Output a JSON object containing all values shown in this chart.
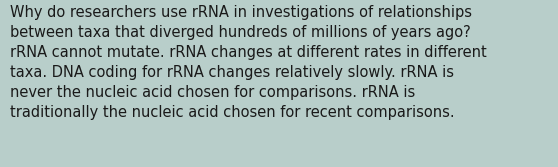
{
  "background_color": "#b8ceca",
  "text_color": "#1a1a1a",
  "font_size": 10.5,
  "text": "Why do researchers use rRNA in investigations of relationships\nbetween taxa that diverged hundreds of millions of years ago?\nrRNA cannot mutate. rRNA changes at different rates in different\ntaxa. DNA coding for rRNA changes relatively slowly. rRNA is\nnever the nucleic acid chosen for comparisons. rRNA is\ntraditionally the nucleic acid chosen for recent comparisons.",
  "fig_width": 5.58,
  "fig_height": 1.67,
  "dpi": 100
}
